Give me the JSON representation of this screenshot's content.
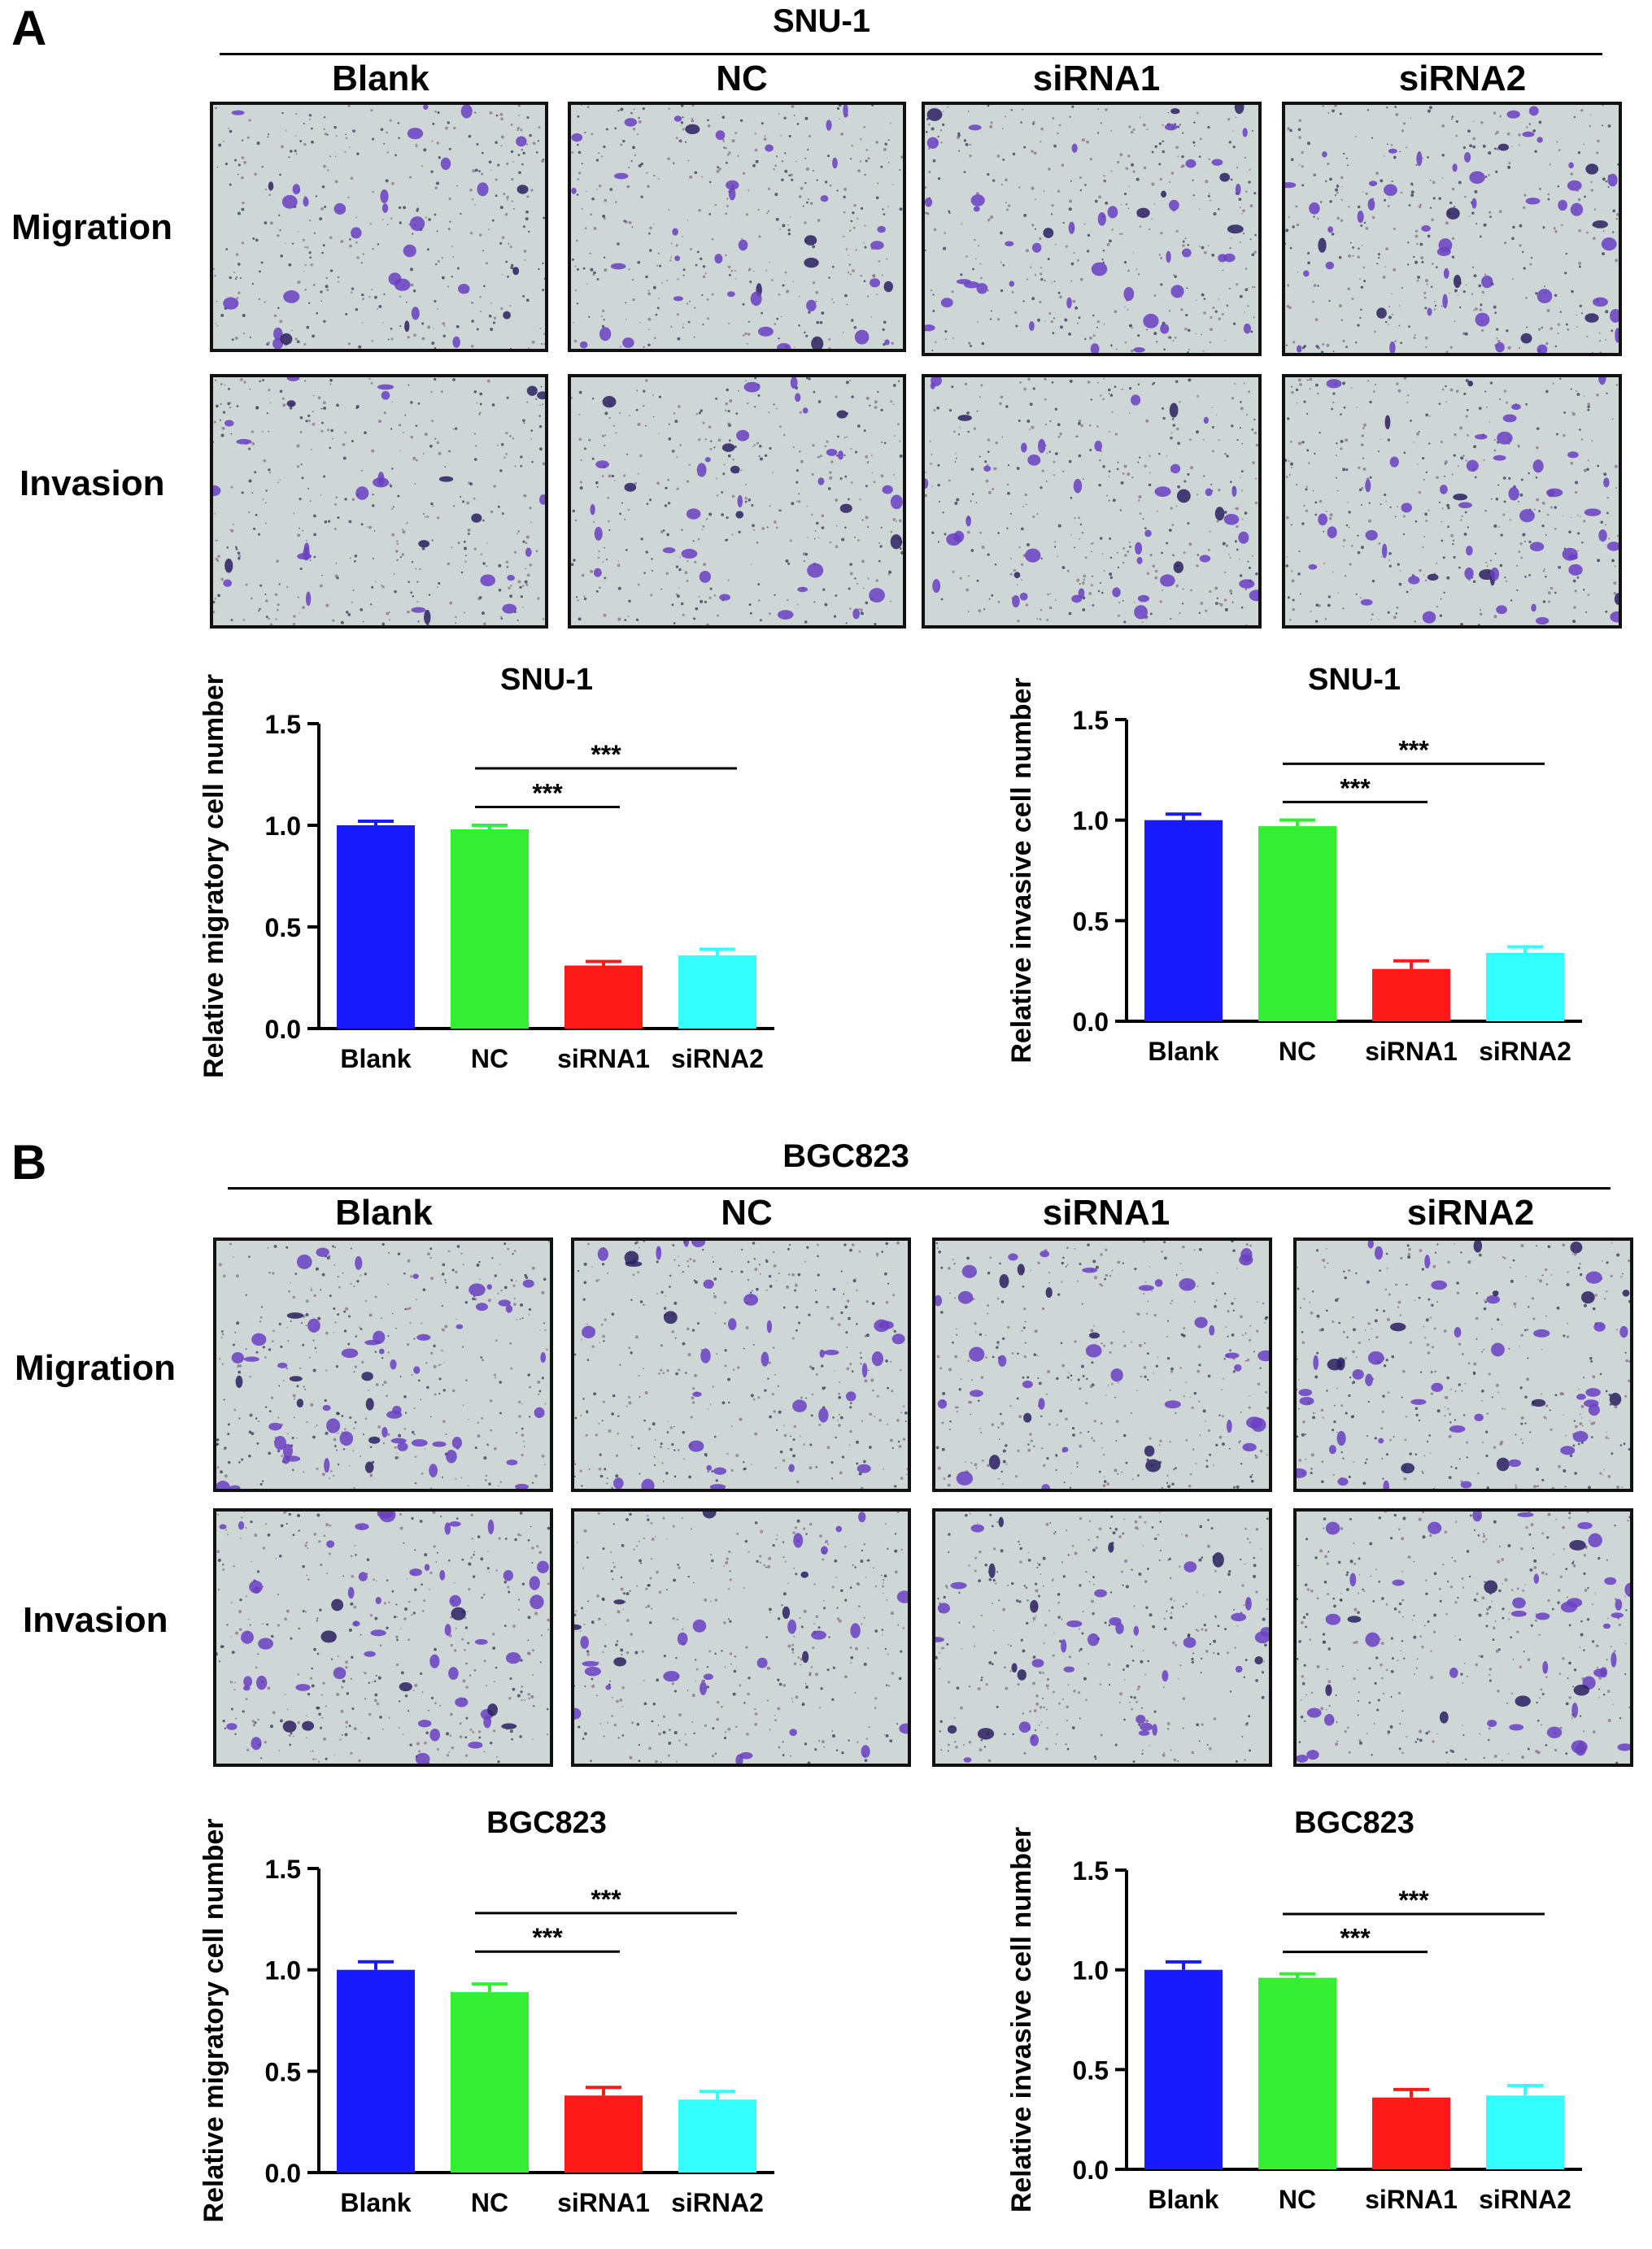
{
  "panels": [
    {
      "letter": "A",
      "cell_line": "SNU-1",
      "columns": [
        "Blank",
        "NC",
        "siRNA1",
        "siRNA2"
      ],
      "rows": [
        "Migration",
        "Invasion"
      ]
    },
    {
      "letter": "B",
      "cell_line": "BGC823",
      "columns": [
        "Blank",
        "NC",
        "siRNA1",
        "siRNA2"
      ],
      "rows": [
        "Migration",
        "Invasion"
      ]
    }
  ],
  "colors": {
    "Blank": "#1a1aff",
    "NC": "#33ee33",
    "siRNA1": "#ff1a1a",
    "siRNA2": "#33ffff",
    "stain": "#6a3fc2",
    "background": "#cfd6d6"
  },
  "chart_data": [
    {
      "type": "bar",
      "title": "SNU-1",
      "ylabel": "Relative migratory cell number",
      "xlabel": "",
      "categories": [
        "Blank",
        "NC",
        "siRNA1",
        "siRNA2"
      ],
      "values": [
        1.0,
        0.98,
        0.31,
        0.36
      ],
      "errors": [
        0.02,
        0.02,
        0.02,
        0.03
      ],
      "ylim": [
        0,
        1.5
      ],
      "yticks": [
        "0.0",
        "0.5",
        "1.0",
        "1.5"
      ],
      "significance": [
        {
          "from": "NC",
          "to": "siRNA1",
          "label": "***"
        },
        {
          "from": "NC",
          "to": "siRNA2",
          "label": "***"
        }
      ]
    },
    {
      "type": "bar",
      "title": "SNU-1",
      "ylabel": "Relative invasive cell number",
      "xlabel": "",
      "categories": [
        "Blank",
        "NC",
        "siRNA1",
        "siRNA2"
      ],
      "values": [
        1.0,
        0.97,
        0.26,
        0.34
      ],
      "errors": [
        0.03,
        0.03,
        0.04,
        0.03
      ],
      "ylim": [
        0,
        1.5
      ],
      "yticks": [
        "0.0",
        "0.5",
        "1.0",
        "1.5"
      ],
      "significance": [
        {
          "from": "NC",
          "to": "siRNA1",
          "label": "***"
        },
        {
          "from": "NC",
          "to": "siRNA2",
          "label": "***"
        }
      ]
    },
    {
      "type": "bar",
      "title": "BGC823",
      "ylabel": "Relative migratory cell number",
      "xlabel": "",
      "categories": [
        "Blank",
        "NC",
        "siRNA1",
        "siRNA2"
      ],
      "values": [
        1.0,
        0.89,
        0.38,
        0.36
      ],
      "errors": [
        0.04,
        0.04,
        0.04,
        0.04
      ],
      "ylim": [
        0,
        1.5
      ],
      "yticks": [
        "0.0",
        "0.5",
        "1.0",
        "1.5"
      ],
      "significance": [
        {
          "from": "NC",
          "to": "siRNA1",
          "label": "***"
        },
        {
          "from": "NC",
          "to": "siRNA2",
          "label": "***"
        }
      ]
    },
    {
      "type": "bar",
      "title": "BGC823",
      "ylabel": "Relative invasive cell number",
      "xlabel": "",
      "categories": [
        "Blank",
        "NC",
        "siRNA1",
        "siRNA2"
      ],
      "values": [
        1.0,
        0.96,
        0.36,
        0.37
      ],
      "errors": [
        0.04,
        0.02,
        0.04,
        0.05
      ],
      "ylim": [
        0,
        1.5
      ],
      "yticks": [
        "0.0",
        "0.5",
        "1.0",
        "1.5"
      ],
      "significance": [
        {
          "from": "NC",
          "to": "siRNA1",
          "label": "***"
        },
        {
          "from": "NC",
          "to": "siRNA2",
          "label": "***"
        }
      ]
    }
  ]
}
